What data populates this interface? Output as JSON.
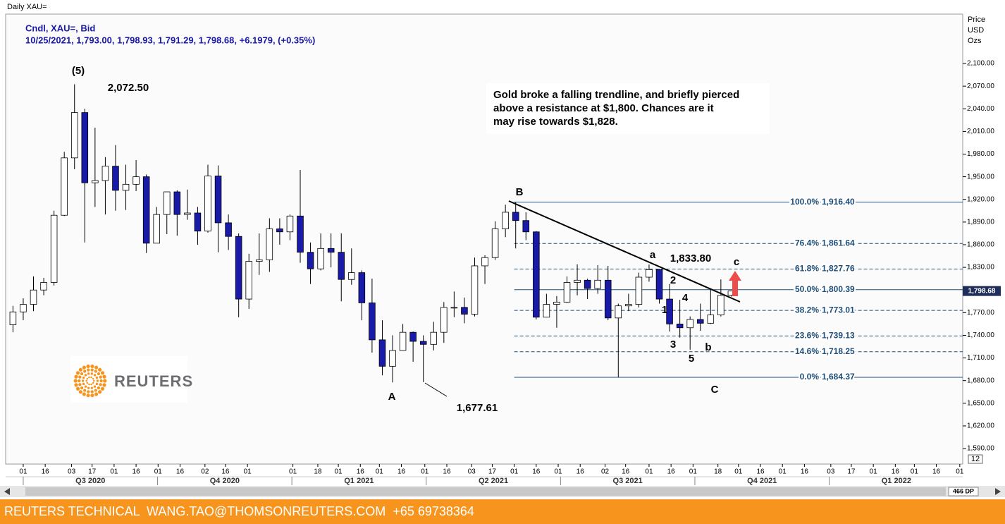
{
  "window_title": "Daily XAU=",
  "chart_data": {
    "type": "candlestick",
    "legend": "Cndl, XAU=, Bid",
    "last_bar": "10/25/2021, 1,793.00, 1,798.93, 1,791.29, 1,798.68, +6.1979, (+0.35%)",
    "axis_label": [
      "Price",
      "USD",
      "Ozs"
    ],
    "colors": {
      "down": "#1a1aa8",
      "up": "#ffffff",
      "wick": "#000000"
    },
    "x": [
      "2020-06-22",
      "2020-06-29",
      "2020-07-06",
      "2020-07-13",
      "2020-07-20",
      "2020-07-27",
      "2020-08-03",
      "2020-08-10",
      "2020-08-17",
      "2020-08-24",
      "2020-08-31",
      "2020-09-07",
      "2020-09-14",
      "2020-09-21",
      "2020-09-28",
      "2020-10-05",
      "2020-10-12",
      "2020-10-19",
      "2020-10-26",
      "2020-11-02",
      "2020-11-09",
      "2020-11-16",
      "2020-11-23",
      "2020-11-30",
      "2020-12-07",
      "2020-12-14",
      "2020-12-21",
      "2020-12-28",
      "2021-01-04",
      "2021-01-11",
      "2021-01-18",
      "2021-01-25",
      "2021-02-01",
      "2021-02-08",
      "2021-02-15",
      "2021-02-22",
      "2021-03-01",
      "2021-03-08",
      "2021-03-15",
      "2021-03-22",
      "2021-03-29",
      "2021-04-05",
      "2021-04-12",
      "2021-04-19",
      "2021-04-26",
      "2021-05-03",
      "2021-05-10",
      "2021-05-17",
      "2021-05-24",
      "2021-05-31",
      "2021-06-07",
      "2021-06-14",
      "2021-06-21",
      "2021-06-28",
      "2021-07-05",
      "2021-07-12",
      "2021-07-19",
      "2021-07-26",
      "2021-08-02",
      "2021-08-09",
      "2021-08-16",
      "2021-08-23",
      "2021-08-30",
      "2021-09-06",
      "2021-09-13",
      "2021-09-20",
      "2021-09-27",
      "2021-10-04",
      "2021-10-11",
      "2021-10-18",
      "2021-10-25"
    ],
    "open": [
      1754,
      1771,
      1781,
      1800,
      1810,
      1899,
      1975,
      2035,
      1942,
      1945,
      1964,
      1932,
      1940,
      1950,
      1862,
      1900,
      1930,
      1900,
      1902,
      1878,
      1951,
      1889,
      1871,
      1788,
      1838,
      1840,
      1881,
      1877,
      1898,
      1850,
      1828,
      1855,
      1850,
      1814,
      1823,
      1783,
      1734,
      1699,
      1720,
      1744,
      1732,
      1728,
      1744,
      1777,
      1777,
      1768,
      1832,
      1843,
      1881,
      1903,
      1892,
      1877,
      1764,
      1781,
      1784,
      1810,
      1813,
      1802,
      1813,
      1763,
      1779,
      1781,
      1817,
      1827,
      1788,
      1755,
      1750,
      1761,
      1756,
      1767,
      1793
    ],
    "high": [
      1779,
      1789,
      1818,
      1816,
      1905,
      1983,
      2072.5,
      2040,
      2015,
      1976,
      1992,
      1966,
      1972,
      1953,
      1910,
      1930,
      1932,
      1933,
      1910,
      1966,
      1965,
      1900,
      1875,
      1848,
      1875,
      1895,
      1895,
      1900,
      1959,
      1863,
      1875,
      1875,
      1875,
      1855,
      1826,
      1815,
      1760,
      1740,
      1755,
      1745,
      1740,
      1758,
      1784,
      1798,
      1790,
      1843,
      1846,
      1891,
      1913,
      1916.4,
      1903,
      1878,
      1795,
      1792,
      1818,
      1834,
      1815,
      1833,
      1832,
      1782,
      1795,
      1823,
      1833.8,
      1828,
      1808,
      1787,
      1765,
      1782,
      1801,
      1814,
      1798.93
    ],
    "low": [
      1744,
      1760,
      1772,
      1793,
      1806,
      1898,
      1960,
      1863,
      1910,
      1900,
      1905,
      1906,
      1931,
      1849,
      1862,
      1874,
      1872,
      1893,
      1860,
      1876,
      1850,
      1853,
      1764,
      1775,
      1820,
      1824,
      1860,
      1866,
      1836,
      1808,
      1826,
      1830,
      1785,
      1807,
      1760,
      1717,
      1687,
      1677.61,
      1720,
      1705,
      1678,
      1720,
      1730,
      1764,
      1756,
      1765,
      1808,
      1840,
      1870,
      1855,
      1866,
      1761,
      1764,
      1750,
      1783,
      1793,
      1788,
      1795,
      1760,
      1684.37,
      1772,
      1777,
      1811,
      1782,
      1745,
      1737,
      1721,
      1746,
      1755,
      1765,
      1791.29
    ],
    "close": [
      1771,
      1781,
      1800,
      1810,
      1899,
      1975,
      2035,
      1942,
      1945,
      1964,
      1932,
      1940,
      1950,
      1862,
      1900,
      1930,
      1900,
      1902,
      1878,
      1951,
      1889,
      1871,
      1788,
      1838,
      1840,
      1881,
      1877,
      1898,
      1850,
      1828,
      1855,
      1850,
      1814,
      1823,
      1783,
      1734,
      1699,
      1720,
      1744,
      1732,
      1728,
      1744,
      1777,
      1777,
      1768,
      1832,
      1843,
      1881,
      1903,
      1892,
      1877,
      1764,
      1781,
      1784,
      1810,
      1813,
      1802,
      1813,
      1763,
      1779,
      1781,
      1817,
      1827,
      1788,
      1755,
      1750,
      1761,
      1756,
      1767,
      1793,
      1798.68
    ],
    "xlim": [
      "2020-06-19",
      "2022-04-03"
    ],
    "xticks": [
      {
        "value": "2020-07-01",
        "label": "01"
      },
      {
        "value": "2020-07-16",
        "label": "16"
      },
      {
        "value": "2020-08-03",
        "label": "03"
      },
      {
        "value": "2020-08-17",
        "label": "17"
      },
      {
        "value": "2020-09-01",
        "label": "01"
      },
      {
        "value": "2020-09-16",
        "label": "16"
      },
      {
        "value": "2020-10-01",
        "label": "01"
      },
      {
        "value": "2020-10-16",
        "label": "16"
      },
      {
        "value": "2020-11-02",
        "label": "02"
      },
      {
        "value": "2020-11-16",
        "label": "16"
      },
      {
        "value": "2020-12-01",
        "label": "01"
      },
      {
        "value": "2021-01-01",
        "label": "01"
      },
      {
        "value": "2021-01-18",
        "label": "18"
      },
      {
        "value": "2021-02-01",
        "label": "01"
      },
      {
        "value": "2021-02-16",
        "label": "16"
      },
      {
        "value": "2021-03-01",
        "label": "01"
      },
      {
        "value": "2021-03-16",
        "label": "16"
      },
      {
        "value": "2021-04-01",
        "label": "01"
      },
      {
        "value": "2021-04-16",
        "label": "16"
      },
      {
        "value": "2021-05-03",
        "label": "03"
      },
      {
        "value": "2021-05-17",
        "label": "17"
      },
      {
        "value": "2021-06-01",
        "label": "01"
      },
      {
        "value": "2021-06-16",
        "label": "16"
      },
      {
        "value": "2021-07-01",
        "label": "01"
      },
      {
        "value": "2021-07-16",
        "label": "16"
      },
      {
        "value": "2021-08-02",
        "label": "02"
      },
      {
        "value": "2021-08-16",
        "label": "16"
      },
      {
        "value": "2021-09-01",
        "label": "01"
      },
      {
        "value": "2021-09-16",
        "label": "16"
      },
      {
        "value": "2021-10-01",
        "label": "01"
      },
      {
        "value": "2021-10-18",
        "label": "18"
      },
      {
        "value": "2021-11-01",
        "label": "01"
      },
      {
        "value": "2021-11-16",
        "label": "16"
      },
      {
        "value": "2021-12-01",
        "label": "01"
      },
      {
        "value": "2021-12-16",
        "label": "16"
      },
      {
        "value": "2022-01-03",
        "label": "03"
      },
      {
        "value": "2022-01-17",
        "label": "17"
      },
      {
        "value": "2022-02-01",
        "label": "01"
      },
      {
        "value": "2022-02-16",
        "label": "16"
      },
      {
        "value": "2022-03-01",
        "label": "01"
      },
      {
        "value": "2022-03-16",
        "label": "16"
      },
      {
        "value": "2022-04-01",
        "label": "01"
      }
    ],
    "quarters": [
      "Q3 2020",
      "Q4 2020",
      "Q1 2021",
      "Q2 2021",
      "Q3 2021",
      "Q4 2021",
      "Q1 2022"
    ],
    "ylim": [
      1569.5,
      2165.4
    ],
    "yticks": [
      {
        "value": 1590,
        "label": "1,590.00"
      },
      {
        "value": 1620,
        "label": "1,620.00"
      },
      {
        "value": 1650,
        "label": "1,650.00"
      },
      {
        "value": 1680,
        "label": "1,680.00"
      },
      {
        "value": 1710,
        "label": "1,710.00"
      },
      {
        "value": 1740,
        "label": "1,740.00"
      },
      {
        "value": 1770,
        "label": "1,770.00"
      },
      {
        "value": 1800,
        "label": "1,800.00"
      },
      {
        "value": 1830,
        "label": "1,830.00"
      },
      {
        "value": 1860,
        "label": "1,860.00"
      },
      {
        "value": 1890,
        "label": "1,890.00"
      },
      {
        "value": 1920,
        "label": "1,920.00"
      },
      {
        "value": 1950,
        "label": "1,950.00"
      },
      {
        "value": 1980,
        "label": "1,980.00"
      },
      {
        "value": 2010,
        "label": "2,010.00"
      },
      {
        "value": 2040,
        "label": "2,040.00"
      },
      {
        "value": 2070,
        "label": "2,070.00"
      },
      {
        "value": 2100,
        "label": "2,100.00"
      }
    ],
    "last_price": {
      "value": 1798.68,
      "label": "1,798.68"
    },
    "fib_levels": [
      {
        "percent": "100.0%",
        "price": {
          "value": 1916.4,
          "label": "1,916.40"
        },
        "dashed": false
      },
      {
        "percent": "76.4%",
        "price": {
          "value": 1861.64,
          "label": "1,861.64"
        },
        "dashed": true
      },
      {
        "percent": "61.8%",
        "price": {
          "value": 1827.76,
          "label": "1,827.76"
        },
        "dashed": true
      },
      {
        "percent": "50.0%",
        "price": {
          "value": 1800.39,
          "label": "1,800.39"
        },
        "dashed": false
      },
      {
        "percent": "38.2%",
        "price": {
          "value": 1773.01,
          "label": "1,773.01"
        },
        "dashed": true
      },
      {
        "percent": "23.6%",
        "price": {
          "value": 1739.13,
          "label": "1,739.13"
        },
        "dashed": true
      },
      {
        "percent": "14.6%",
        "price": {
          "value": 1718.25,
          "label": "1,718.25"
        },
        "dashed": true
      },
      {
        "percent": "0.0%",
        "price": {
          "value": 1684.37,
          "label": "1,684.37"
        },
        "dashed": false
      }
    ],
    "annotations": [
      "(5)",
      "2,072.50",
      "A",
      "1,677.61",
      "B",
      "a",
      "1,833.80",
      "c",
      "1",
      "2",
      "3",
      "4",
      "5",
      "b",
      "C"
    ],
    "comment": [
      "Gold broke a falling trendline, and briefly pierced",
      "above a resistance at $1,800. Chances are it",
      "may rise towards $1,828."
    ],
    "zoom_label": "12"
  },
  "logo": "REUTERS",
  "scrollbar": "466 DP",
  "footer": "REUTERS TECHNICAL  WANG.TAO@THOMSONREUTERS.COM  +65 69738364"
}
